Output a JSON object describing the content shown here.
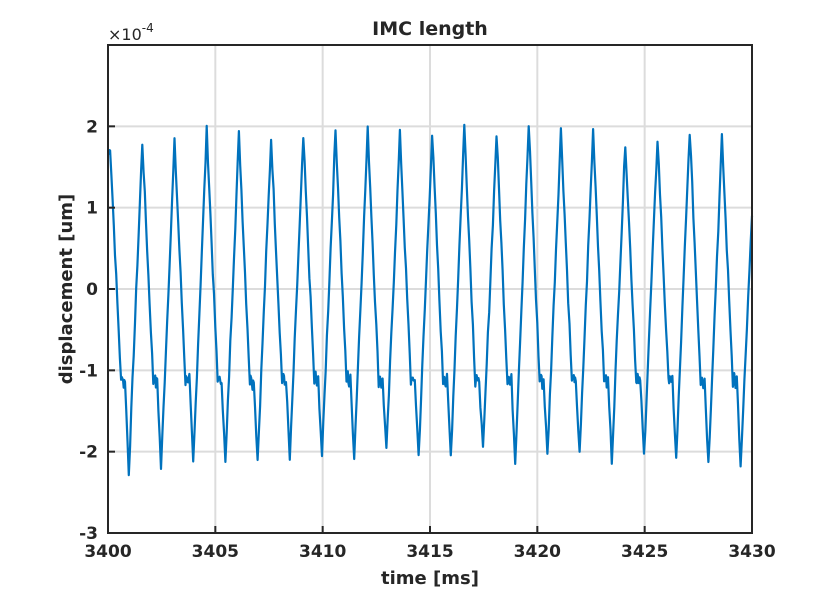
{
  "chart_data": {
    "type": "line",
    "title": "IMC length",
    "xlabel": "time [ms]",
    "ylabel": "displacement [um]",
    "y_exponent_label": "×10",
    "y_exponent": "-4",
    "xlim": [
      3400,
      3430
    ],
    "ylim": [
      -3,
      3
    ],
    "xticks": [
      3400,
      3405,
      3410,
      3415,
      3420,
      3425,
      3430
    ],
    "yticks": [
      -3,
      -2,
      -1,
      0,
      1,
      2
    ],
    "grid": true,
    "series": [
      {
        "name": "IMC length",
        "color": "#0072BD",
        "period_ms": 1.5,
        "first_peak_ms": 3400.1,
        "plateau_value": -1.1,
        "peaks": [
          1.75,
          1.8,
          1.8,
          1.95,
          1.9,
          1.85,
          1.85,
          1.95,
          1.95,
          1.9,
          1.9,
          2.0,
          1.9,
          2.0,
          1.95,
          1.95,
          1.8,
          1.85,
          1.95,
          1.85
        ],
        "troughs": [
          -2.25,
          -2.2,
          -2.15,
          -2.15,
          -2.1,
          -2.1,
          -2.05,
          -2.05,
          -2.0,
          -2.05,
          -2.05,
          -2.0,
          -2.1,
          -2.05,
          -2.05,
          -2.1,
          -2.05,
          -2.1,
          -2.15,
          -2.2
        ],
        "end_value": 0.9
      }
    ]
  }
}
